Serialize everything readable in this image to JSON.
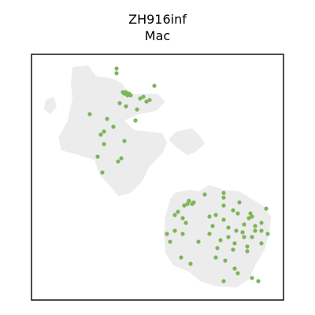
{
  "chart_data": {
    "type": "scatter",
    "title_line1": "ZH916inf",
    "title_line2": "Mac",
    "xlabel": "",
    "ylabel": "",
    "xlim": [
      0,
      320
    ],
    "ylim": [
      0,
      312
    ],
    "grid": false,
    "axis_ticks": false,
    "colors": {
      "background_spots": "#ececec",
      "highlight_spots": "#7cb55a",
      "frame": "#000000"
    },
    "tissue_regions": [
      {
        "name": "upper-left",
        "polygon": [
          [
            52,
            296
          ],
          [
            72,
            298
          ],
          [
            82,
            284
          ],
          [
            100,
            282
          ],
          [
            114,
            276
          ],
          [
            124,
            262
          ],
          [
            160,
            262
          ],
          [
            170,
            252
          ],
          [
            158,
            240
          ],
          [
            136,
            236
          ],
          [
            118,
            228
          ],
          [
            130,
            216
          ],
          [
            166,
            212
          ],
          [
            172,
            200
          ],
          [
            166,
            186
          ],
          [
            150,
            170
          ],
          [
            140,
            150
          ],
          [
            126,
            136
          ],
          [
            110,
            132
          ],
          [
            104,
            140
          ],
          [
            86,
            160
          ],
          [
            80,
            178
          ],
          [
            60,
            184
          ],
          [
            38,
            190
          ],
          [
            34,
            206
          ],
          [
            46,
            228
          ],
          [
            52,
            256
          ],
          [
            50,
            276
          ]
        ]
      },
      {
        "name": "lower-right",
        "polygon": [
          [
            176,
            128
          ],
          [
            182,
            136
          ],
          [
            200,
            140
          ],
          [
            212,
            138
          ],
          [
            226,
            146
          ],
          [
            244,
            140
          ],
          [
            264,
            138
          ],
          [
            280,
            128
          ],
          [
            294,
            120
          ],
          [
            304,
            106
          ],
          [
            302,
            86
          ],
          [
            296,
            64
          ],
          [
            284,
            44
          ],
          [
            276,
            26
          ],
          [
            260,
            16
          ],
          [
            232,
            18
          ],
          [
            214,
            24
          ],
          [
            200,
            36
          ],
          [
            180,
            44
          ],
          [
            170,
            60
          ],
          [
            168,
            84
          ],
          [
            170,
            106
          ]
        ]
      },
      {
        "name": "middle-strip",
        "polygon": [
          [
            184,
            214
          ],
          [
            204,
            218
          ],
          [
            214,
            208
          ],
          [
            220,
            198
          ],
          [
            208,
            188
          ],
          [
            198,
            184
          ],
          [
            184,
            194
          ],
          [
            174,
            204
          ]
        ]
      },
      {
        "name": "small-left-blob",
        "polygon": [
          [
            18,
            254
          ],
          [
            28,
            258
          ],
          [
            32,
            246
          ],
          [
            24,
            236
          ],
          [
            16,
            242
          ]
        ]
      }
    ],
    "mac_points": [
      {
        "x": 108,
        "y": 294
      },
      {
        "x": 108,
        "y": 288
      },
      {
        "x": 156,
        "y": 272
      },
      {
        "x": 116,
        "y": 264
      },
      {
        "x": 118,
        "y": 262
      },
      {
        "x": 120,
        "y": 264
      },
      {
        "x": 122,
        "y": 260
      },
      {
        "x": 124,
        "y": 262
      },
      {
        "x": 126,
        "y": 260
      },
      {
        "x": 138,
        "y": 256
      },
      {
        "x": 142,
        "y": 258
      },
      {
        "x": 146,
        "y": 252
      },
      {
        "x": 150,
        "y": 254
      },
      {
        "x": 112,
        "y": 250
      },
      {
        "x": 120,
        "y": 246
      },
      {
        "x": 134,
        "y": 242
      },
      {
        "x": 74,
        "y": 236
      },
      {
        "x": 96,
        "y": 230
      },
      {
        "x": 132,
        "y": 228
      },
      {
        "x": 104,
        "y": 220
      },
      {
        "x": 92,
        "y": 214
      },
      {
        "x": 88,
        "y": 210
      },
      {
        "x": 118,
        "y": 202
      },
      {
        "x": 92,
        "y": 198
      },
      {
        "x": 84,
        "y": 182
      },
      {
        "x": 114,
        "y": 180
      },
      {
        "x": 110,
        "y": 176
      },
      {
        "x": 90,
        "y": 162
      },
      {
        "x": 220,
        "y": 134
      },
      {
        "x": 244,
        "y": 136
      },
      {
        "x": 244,
        "y": 130
      },
      {
        "x": 200,
        "y": 126
      },
      {
        "x": 204,
        "y": 122
      },
      {
        "x": 206,
        "y": 124
      },
      {
        "x": 198,
        "y": 122
      },
      {
        "x": 194,
        "y": 120
      },
      {
        "x": 264,
        "y": 124
      },
      {
        "x": 244,
        "y": 120
      },
      {
        "x": 256,
        "y": 114
      },
      {
        "x": 262,
        "y": 110
      },
      {
        "x": 278,
        "y": 110
      },
      {
        "x": 280,
        "y": 106
      },
      {
        "x": 276,
        "y": 104
      },
      {
        "x": 186,
        "y": 112
      },
      {
        "x": 182,
        "y": 108
      },
      {
        "x": 192,
        "y": 104
      },
      {
        "x": 234,
        "y": 108
      },
      {
        "x": 226,
        "y": 106
      },
      {
        "x": 244,
        "y": 102
      },
      {
        "x": 292,
        "y": 98
      },
      {
        "x": 284,
        "y": 94
      },
      {
        "x": 270,
        "y": 96
      },
      {
        "x": 196,
        "y": 98
      },
      {
        "x": 230,
        "y": 94
      },
      {
        "x": 250,
        "y": 92
      },
      {
        "x": 260,
        "y": 88
      },
      {
        "x": 268,
        "y": 86
      },
      {
        "x": 284,
        "y": 88
      },
      {
        "x": 292,
        "y": 88
      },
      {
        "x": 300,
        "y": 84
      },
      {
        "x": 172,
        "y": 84
      },
      {
        "x": 182,
        "y": 88
      },
      {
        "x": 192,
        "y": 84
      },
      {
        "x": 226,
        "y": 84
      },
      {
        "x": 250,
        "y": 80
      },
      {
        "x": 270,
        "y": 80
      },
      {
        "x": 280,
        "y": 80
      },
      {
        "x": 176,
        "y": 74
      },
      {
        "x": 212,
        "y": 74
      },
      {
        "x": 240,
        "y": 76
      },
      {
        "x": 258,
        "y": 72
      },
      {
        "x": 274,
        "y": 68
      },
      {
        "x": 292,
        "y": 72
      },
      {
        "x": 236,
        "y": 66
      },
      {
        "x": 256,
        "y": 64
      },
      {
        "x": 274,
        "y": 62
      },
      {
        "x": 190,
        "y": 54
      },
      {
        "x": 234,
        "y": 54
      },
      {
        "x": 246,
        "y": 50
      },
      {
        "x": 202,
        "y": 46
      },
      {
        "x": 258,
        "y": 40
      },
      {
        "x": 262,
        "y": 34
      },
      {
        "x": 244,
        "y": 24
      },
      {
        "x": 280,
        "y": 28
      },
      {
        "x": 288,
        "y": 24
      },
      {
        "x": 298,
        "y": 116
      }
    ]
  }
}
